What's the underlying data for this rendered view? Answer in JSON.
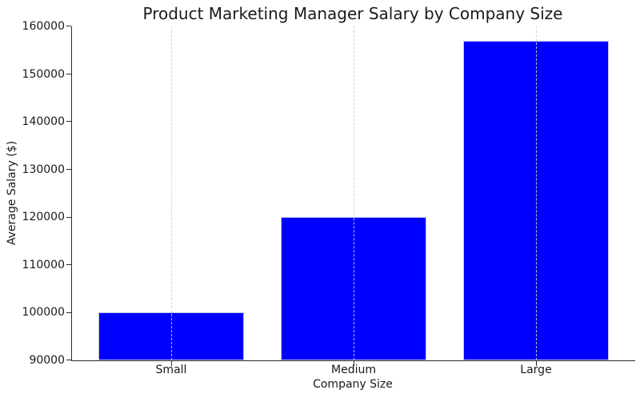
{
  "chart_data": {
    "type": "bar",
    "title": "Product Marketing Manager Salary by Company Size",
    "xlabel": "Company Size",
    "ylabel": "Average Salary ($)",
    "categories": [
      "Small",
      "Medium",
      "Large"
    ],
    "values": [
      100000,
      120000,
      157000
    ],
    "ylim": [
      90000,
      160000
    ],
    "yticks": [
      90000,
      100000,
      110000,
      120000,
      130000,
      140000,
      150000,
      160000
    ],
    "grid": "x-only-dashed",
    "legend": "none",
    "bar_color": "#0000ff",
    "bar_edge_color": "#c2c2e8",
    "gridline_color": "#d0d0d0",
    "spine_color": "#2b2b2b",
    "text_color": "#1a1a1a",
    "background_color": "#ffffff"
  }
}
